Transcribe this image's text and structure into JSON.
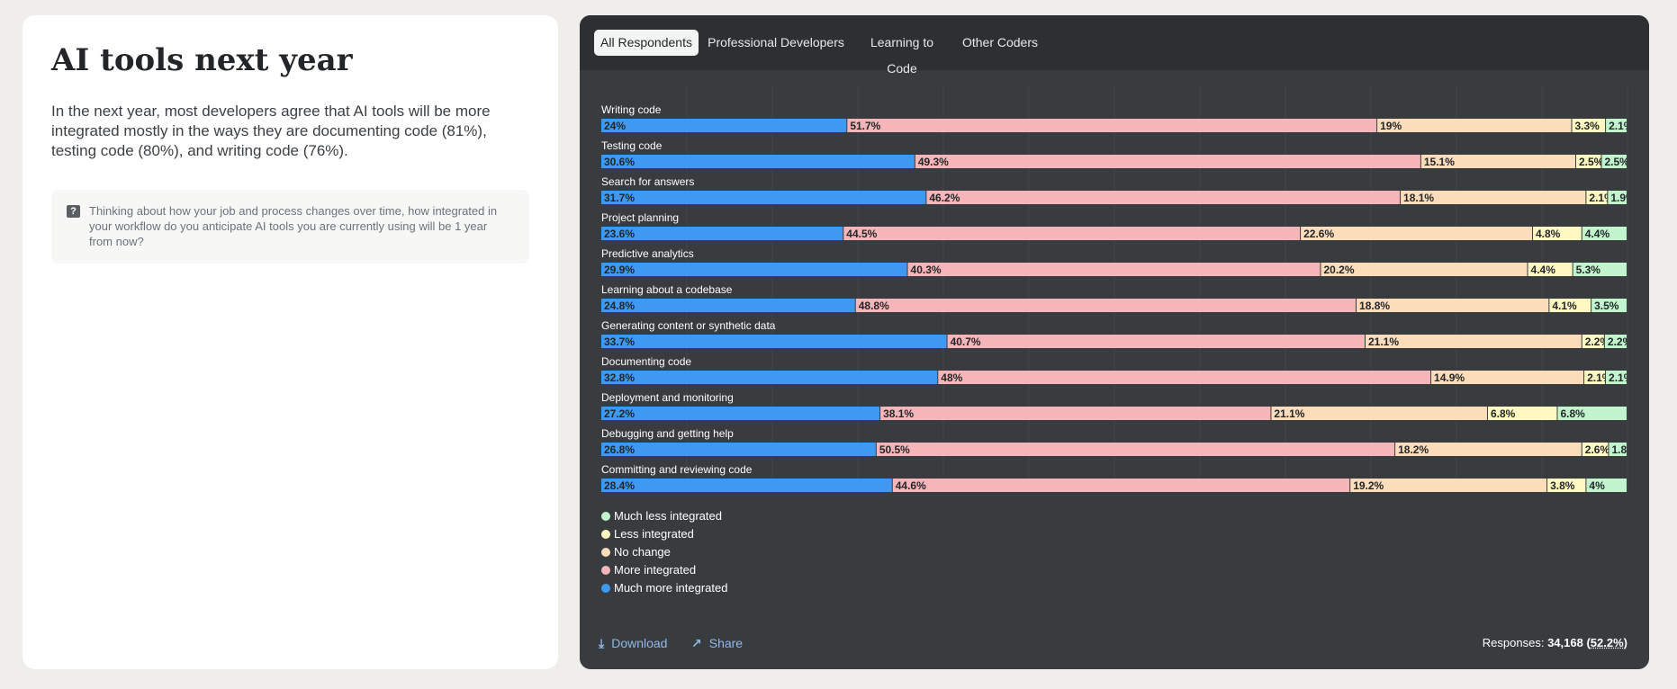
{
  "page": {
    "title": "AI tools next year",
    "intro": "In the next year, most developers agree that AI tools will be more integrated mostly in the ways they are documenting code (81%), testing code (80%), and writing code (76%).",
    "question": "Thinking about how your job and process changes over time, how integrated in your workflow do you anticipate AI tools you are currently using will be 1 year from now?",
    "question_icon": "?"
  },
  "tabs": [
    {
      "label": "All Respondents",
      "active": true
    },
    {
      "label": "Professional Developers",
      "active": false
    },
    {
      "label": "Learning to Code",
      "active": false
    },
    {
      "label": "Other Coders",
      "active": false
    }
  ],
  "chart_data": {
    "type": "bar",
    "stacked": true,
    "orientation": "horizontal",
    "categories": [
      "Writing code",
      "Testing code",
      "Search for answers",
      "Project planning",
      "Predictive analytics",
      "Learning about a codebase",
      "Generating content or synthetic data",
      "Documenting code",
      "Deployment and monitoring",
      "Debugging and getting help",
      "Committing and reviewing code"
    ],
    "series": [
      {
        "name": "Much more integrated",
        "color": "#3d99f2",
        "values": [
          24,
          30.6,
          31.7,
          23.6,
          29.9,
          24.8,
          33.7,
          32.8,
          27.2,
          26.8,
          28.4
        ]
      },
      {
        "name": "More integrated",
        "color": "#f6b5b8",
        "values": [
          51.7,
          49.3,
          46.2,
          44.5,
          40.3,
          48.8,
          40.7,
          48,
          38.1,
          50.5,
          44.6
        ]
      },
      {
        "name": "No change",
        "color": "#fbdcbb",
        "values": [
          19,
          15.1,
          18.1,
          22.6,
          20.2,
          18.8,
          21.1,
          14.9,
          21.1,
          18.2,
          19.2
        ]
      },
      {
        "name": "Less integrated",
        "color": "#fdf8c1",
        "values": [
          3.3,
          2.5,
          2.1,
          4.8,
          4.4,
          4.1,
          2.2,
          2.1,
          6.8,
          2.6,
          3.8
        ]
      },
      {
        "name": "Much less integrated",
        "color": "#c2f5cd",
        "values": [
          2.1,
          2.5,
          1.9,
          4.4,
          5.3,
          3.5,
          2.2,
          2.1,
          6.8,
          1.8,
          4
        ]
      }
    ],
    "value_suffix": "%",
    "xlim": [
      0,
      100
    ],
    "grid": true,
    "legend": {
      "position": "bottom-left",
      "order": [
        "Much less integrated",
        "Less integrated",
        "No change",
        "More integrated",
        "Much more integrated"
      ]
    }
  },
  "footer": {
    "download_label": "Download",
    "share_label": "Share",
    "responses_prefix": "Responses: ",
    "responses_count": "34,168",
    "responses_pct": "52.2%"
  }
}
